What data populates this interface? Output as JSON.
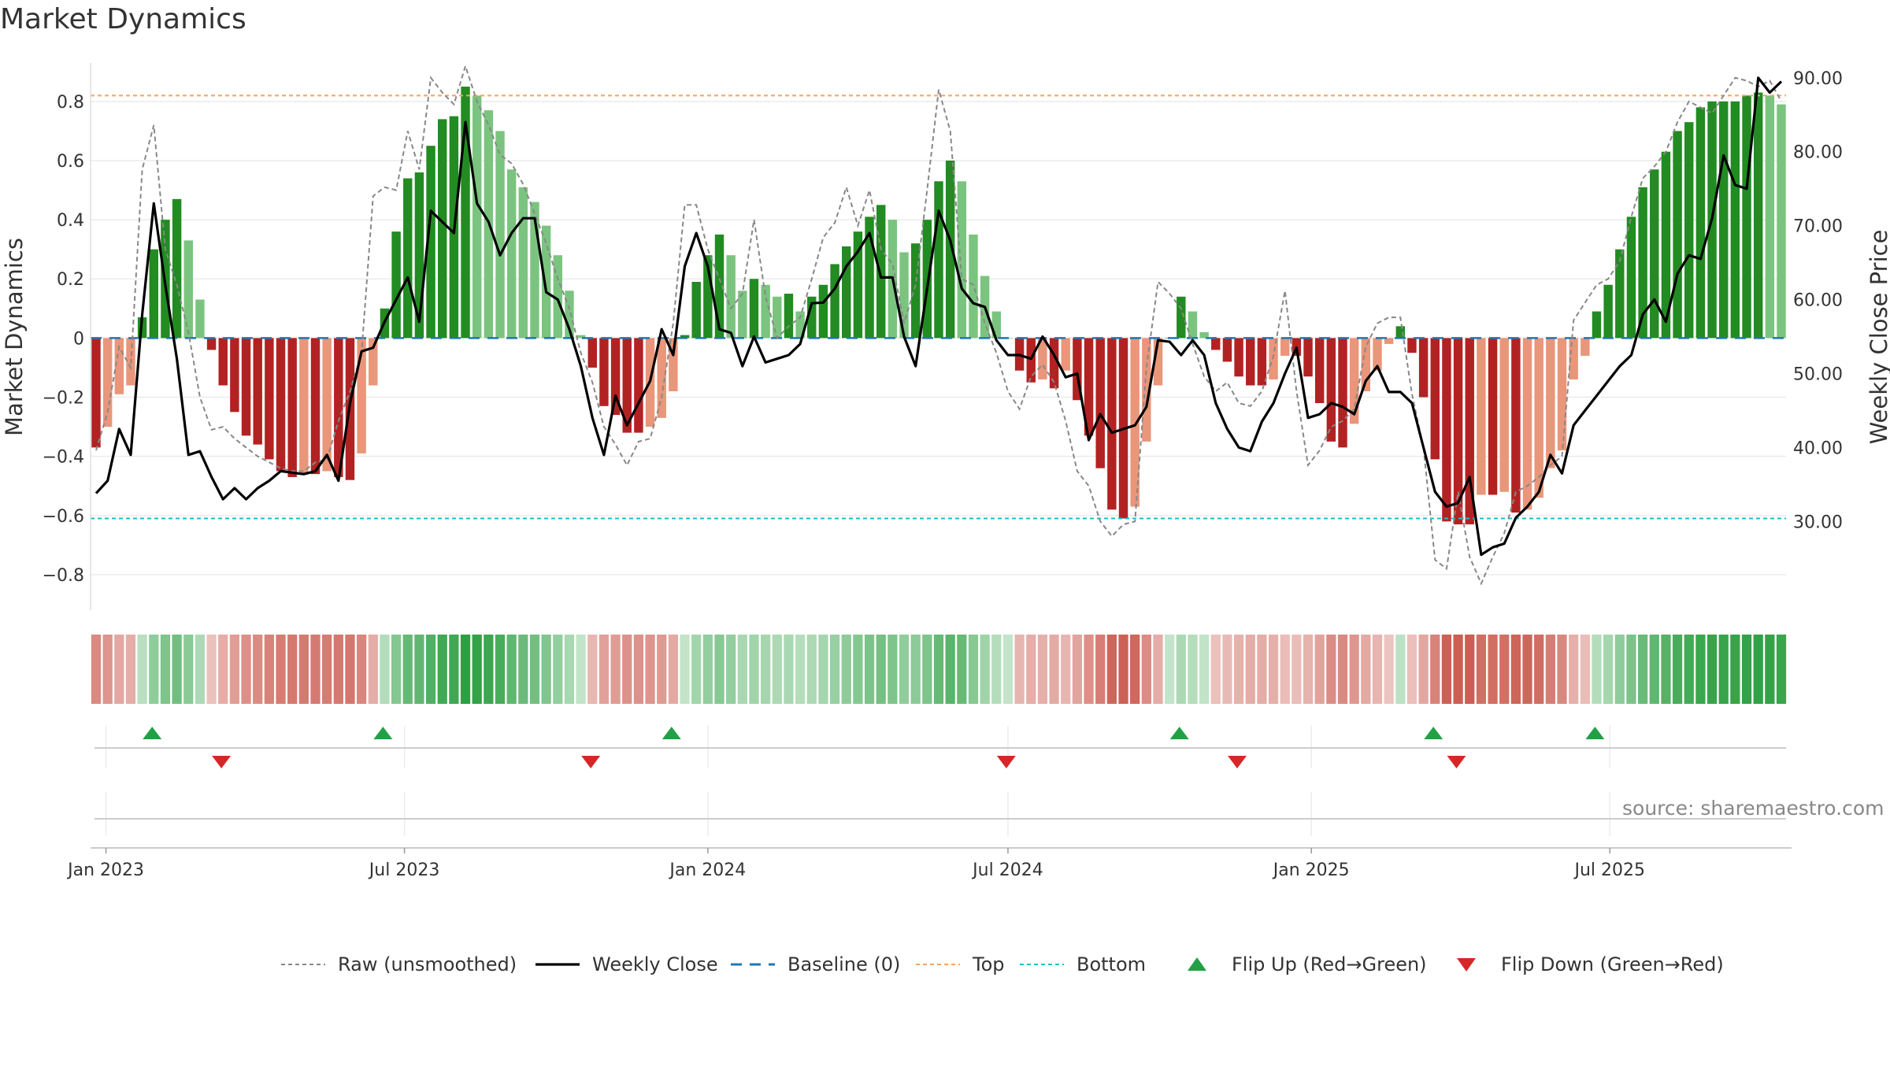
{
  "title": "Market Dynamics",
  "source": "source: sharemaestro.com",
  "chart_data": {
    "type": "bar",
    "x_start": "2022-12-26",
    "x_step_days": 7,
    "x_ticks": [
      "Jan 2023",
      "Jul 2023",
      "Jan 2024",
      "Jul 2024",
      "Jan 2025",
      "Jul 2025"
    ],
    "x_tick_dates": [
      "2023-01-01",
      "2023-07-01",
      "2024-01-01",
      "2024-07-01",
      "2025-01-01",
      "2025-07-01"
    ],
    "y_left": {
      "label": "Market Dynamics",
      "ylim": [
        -0.92,
        0.93
      ],
      "ticks": [
        0.8,
        0.6,
        0.4,
        0.2,
        0,
        -0.2,
        -0.4,
        -0.6,
        -0.8
      ],
      "tick_labels": [
        "0.8",
        "0.6",
        "0.4",
        "0.2",
        "0",
        "−0.2",
        "−0.4",
        "−0.6",
        "−0.8"
      ]
    },
    "y_right": {
      "label": "Weekly Close Price",
      "ylim": [
        18.0,
        92.0
      ],
      "ticks": [
        90,
        80,
        70,
        60,
        50,
        40,
        30
      ],
      "tick_labels": [
        "90.00",
        "80.00",
        "70.00",
        "60.00",
        "50.00",
        "40.00",
        "30.00"
      ]
    },
    "top_level": 0.82,
    "bottom_level": -0.61,
    "grid": true,
    "legend_placement": "bottom-center",
    "colors": {
      "strong_green": "#228B22",
      "light_green": "#7BC47F",
      "strong_red": "#B22222",
      "light_red": "#E9967A",
      "close_line": "#000000",
      "raw_line": "#888888",
      "baseline": "#1f77b4",
      "top": "#F4A460",
      "bottom": "#17BECF",
      "flip_up": "#22A045",
      "flip_down": "#D62728"
    },
    "series": [
      {
        "name": "Market Dynamics",
        "values": [
          -0.37,
          -0.3,
          -0.19,
          -0.16,
          0.07,
          0.3,
          0.4,
          0.47,
          0.33,
          0.13,
          -0.04,
          -0.16,
          -0.25,
          -0.33,
          -0.36,
          -0.41,
          -0.45,
          -0.47,
          -0.46,
          -0.46,
          -0.45,
          -0.47,
          -0.48,
          -0.39,
          -0.16,
          0.1,
          0.36,
          0.54,
          0.56,
          0.65,
          0.74,
          0.75,
          0.85,
          0.82,
          0.77,
          0.7,
          0.57,
          0.51,
          0.46,
          0.38,
          0.28,
          0.16,
          0.01,
          -0.1,
          -0.23,
          -0.26,
          -0.32,
          -0.32,
          -0.3,
          -0.27,
          -0.18,
          0.01,
          0.19,
          0.28,
          0.35,
          0.28,
          0.16,
          0.2,
          0.18,
          0.14,
          0.15,
          0.09,
          0.14,
          0.18,
          0.25,
          0.31,
          0.36,
          0.41,
          0.45,
          0.4,
          0.29,
          0.32,
          0.4,
          0.53,
          0.6,
          0.53,
          0.35,
          0.21,
          0.09,
          0.0,
          -0.11,
          -0.15,
          -0.14,
          -0.17,
          -0.11,
          -0.21,
          -0.33,
          -0.44,
          -0.58,
          -0.61,
          -0.57,
          -0.35,
          -0.16,
          0.0,
          0.14,
          0.09,
          0.02,
          -0.04,
          -0.08,
          -0.13,
          -0.16,
          -0.16,
          -0.14,
          -0.06,
          -0.06,
          -0.13,
          -0.22,
          -0.35,
          -0.37,
          -0.29,
          -0.18,
          -0.11,
          -0.02,
          0.04,
          -0.05,
          -0.2,
          -0.41,
          -0.62,
          -0.63,
          -0.63,
          -0.53,
          -0.53,
          -0.52,
          -0.59,
          -0.58,
          -0.54,
          -0.44,
          -0.38,
          -0.14,
          -0.06,
          0.09,
          0.18,
          0.3,
          0.41,
          0.51,
          0.57,
          0.63,
          0.7,
          0.73,
          0.78,
          0.8,
          0.8,
          0.8,
          0.82,
          0.83,
          0.82,
          0.79
        ]
      },
      {
        "name": "Weekly Close",
        "values": [
          33.8,
          35.5,
          42.5,
          39.0,
          58.0,
          73.0,
          62.0,
          52.0,
          39.0,
          39.5,
          36.0,
          33.0,
          34.5,
          33.0,
          34.5,
          35.5,
          36.8,
          36.6,
          36.4,
          36.8,
          39.0,
          35.5,
          46.0,
          53.0,
          53.5,
          57.0,
          60.0,
          63.0,
          57.0,
          72.0,
          70.5,
          69.0,
          84.0,
          73.0,
          70.5,
          66.0,
          69.0,
          71.0,
          71.0,
          61.0,
          60.0,
          56.0,
          51.0,
          44.0,
          39.0,
          47.0,
          43.0,
          46.0,
          49.0,
          56.0,
          52.5,
          64.5,
          69.0,
          64.5,
          56.0,
          55.5,
          51.0,
          55.0,
          51.5,
          52.0,
          52.5,
          54.0,
          59.5,
          59.6,
          61.5,
          64.5,
          66.5,
          69.0,
          63.0,
          63.0,
          55.0,
          51.0,
          61.5,
          72.0,
          68.0,
          61.5,
          59.5,
          59.0,
          54.5,
          52.5,
          52.5,
          52.0,
          55.0,
          52.5,
          49.5,
          50.0,
          41.0,
          44.5,
          42.0,
          42.5,
          43.0,
          45.5,
          54.5,
          54.3,
          52.5,
          54.5,
          52.5,
          46.0,
          42.5,
          40.0,
          39.5,
          43.5,
          46.0,
          50.0,
          53.5,
          44.0,
          44.5,
          46.0,
          45.5,
          44.5,
          49.0,
          51.0,
          47.5,
          47.5,
          46.0,
          40.0,
          34.0,
          32.0,
          32.5,
          36.0,
          25.5,
          26.5,
          27.0,
          30.5,
          32.0,
          34.0,
          39.0,
          36.5,
          43.0,
          45.0,
          47.0,
          49.0,
          51.0,
          52.5,
          58.0,
          60.0,
          57.0,
          63.5,
          66.0,
          65.5,
          71.0,
          79.5,
          75.5,
          75.0,
          90.0,
          88.0,
          89.5
        ]
      },
      {
        "name": "Raw (unsmoothed)",
        "values": [
          -0.38,
          -0.25,
          -0.03,
          -0.1,
          0.57,
          0.72,
          0.3,
          0.18,
          0.02,
          -0.2,
          -0.31,
          -0.3,
          -0.34,
          -0.37,
          -0.4,
          -0.42,
          -0.44,
          -0.45,
          -0.45,
          -0.42,
          -0.41,
          -0.28,
          -0.18,
          -0.05,
          0.48,
          0.51,
          0.5,
          0.7,
          0.57,
          0.88,
          0.83,
          0.79,
          0.92,
          0.8,
          0.72,
          0.62,
          0.59,
          0.52,
          0.42,
          0.32,
          0.2,
          0.1,
          -0.05,
          -0.15,
          -0.3,
          -0.36,
          -0.43,
          -0.35,
          -0.34,
          -0.2,
          0.05,
          0.45,
          0.45,
          0.3,
          0.2,
          0.1,
          0.15,
          0.4,
          0.14,
          0.0,
          0.04,
          0.07,
          0.2,
          0.34,
          0.39,
          0.51,
          0.38,
          0.5,
          0.3,
          0.25,
          0.05,
          0.18,
          0.5,
          0.84,
          0.7,
          0.2,
          0.18,
          0.05,
          -0.05,
          -0.18,
          -0.24,
          -0.13,
          -0.09,
          -0.15,
          -0.28,
          -0.45,
          -0.5,
          -0.62,
          -0.67,
          -0.63,
          -0.62,
          -0.1,
          0.19,
          0.15,
          0.1,
          -0.02,
          -0.13,
          -0.18,
          -0.15,
          -0.22,
          -0.23,
          -0.18,
          -0.06,
          0.16,
          -0.18,
          -0.43,
          -0.38,
          -0.3,
          -0.28,
          -0.24,
          -0.03,
          0.05,
          0.07,
          0.07,
          -0.19,
          -0.37,
          -0.75,
          -0.78,
          -0.52,
          -0.74,
          -0.83,
          -0.74,
          -0.66,
          -0.52,
          -0.5,
          -0.47,
          -0.43,
          -0.4,
          0.06,
          0.12,
          0.18,
          0.2,
          0.26,
          0.41,
          0.54,
          0.58,
          0.63,
          0.73,
          0.8,
          0.78,
          0.76,
          0.82,
          0.88,
          0.87,
          0.85,
          0.87,
          0.8
        ]
      },
      {
        "name": "Baseline (0)",
        "values": [
          0
        ]
      },
      {
        "name": "Top",
        "values": [
          0.82
        ]
      },
      {
        "name": "Bottom",
        "values": [
          -0.61
        ]
      },
      {
        "name": "Flip Up (Red→Green)",
        "dates": [
          "2023-01-29",
          "2023-06-18",
          "2023-12-10",
          "2024-10-13",
          "2025-03-16",
          "2025-06-22"
        ]
      },
      {
        "name": "Flip Down (Green→Red)",
        "dates": [
          "2023-03-12",
          "2023-10-22",
          "2024-06-30",
          "2024-11-17",
          "2025-03-30"
        ]
      }
    ],
    "legend": [
      "Raw (unsmoothed)",
      "Weekly Close",
      "Baseline (0)",
      "Top",
      "Bottom",
      "Flip Up (Red→Green)",
      "Flip Down (Green→Red)"
    ]
  }
}
